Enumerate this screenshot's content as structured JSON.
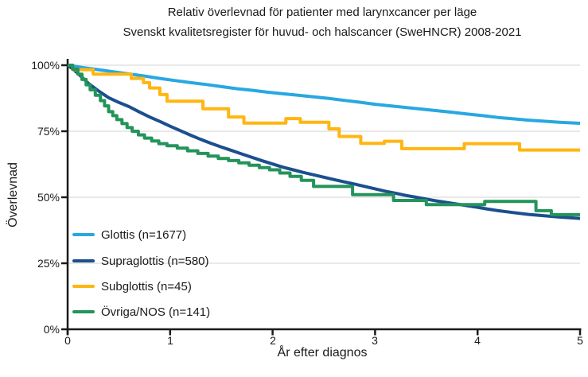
{
  "title": "Relativ överlevnad för patienter med larynxcancer per läge",
  "subtitle": "Svenskt kvalitetsregister för huvud- och halscancer (SweHNCR) 2008-2021",
  "chart_data": {
    "type": "line",
    "title": "Relativ överlevnad för patienter med larynxcancer per läge",
    "subtitle": "Svenskt kvalitetsregister för huvud- och halscancer (SweHNCR) 2008-2021",
    "xlabel": "År efter diagnos",
    "ylabel": "Överlevnad",
    "xlim": [
      0,
      5
    ],
    "ylim": [
      0,
      100
    ],
    "grid": "horizontal",
    "legend_position": "inside-bottom-left",
    "axis_color": "#1a1a1a",
    "grid_color": "#e2e2e2",
    "xticks": [
      {
        "value": 0,
        "label": "0"
      },
      {
        "value": 1,
        "label": "1"
      },
      {
        "value": 2,
        "label": "2"
      },
      {
        "value": 3,
        "label": "3"
      },
      {
        "value": 4,
        "label": "4"
      },
      {
        "value": 5,
        "label": "5"
      }
    ],
    "yticks": [
      {
        "value": 100,
        "label": "100%"
      },
      {
        "value": 75,
        "label": "75%"
      },
      {
        "value": 50,
        "label": "50%"
      },
      {
        "value": 25,
        "label": "25%"
      },
      {
        "value": 0,
        "label": "0%"
      }
    ],
    "series": [
      {
        "name": "Glottis",
        "legend": "Glottis (n=1677)",
        "color": "#29A8E0",
        "interpolation": "linear",
        "points": [
          [
            0,
            100
          ],
          [
            0.15,
            99.1
          ],
          [
            0.3,
            98.3
          ],
          [
            0.45,
            97.5
          ],
          [
            0.6,
            96.7
          ],
          [
            0.75,
            95.9
          ],
          [
            0.9,
            95.0
          ],
          [
            1.05,
            94.2
          ],
          [
            1.2,
            93.4
          ],
          [
            1.35,
            92.7
          ],
          [
            1.5,
            91.9
          ],
          [
            1.65,
            91.1
          ],
          [
            1.8,
            90.5
          ],
          [
            1.95,
            89.8
          ],
          [
            2.1,
            89.2
          ],
          [
            2.25,
            88.6
          ],
          [
            2.4,
            88.0
          ],
          [
            2.55,
            87.4
          ],
          [
            2.7,
            86.7
          ],
          [
            2.85,
            86.0
          ],
          [
            3.0,
            85.2
          ],
          [
            3.15,
            84.6
          ],
          [
            3.3,
            84.0
          ],
          [
            3.45,
            83.4
          ],
          [
            3.6,
            82.8
          ],
          [
            3.75,
            82.2
          ],
          [
            3.9,
            81.5
          ],
          [
            4.05,
            80.9
          ],
          [
            4.2,
            80.2
          ],
          [
            4.35,
            79.7
          ],
          [
            4.5,
            79.2
          ],
          [
            4.65,
            78.8
          ],
          [
            4.8,
            78.4
          ],
          [
            5.0,
            78.0
          ]
        ]
      },
      {
        "name": "Supraglottis",
        "legend": "Supraglottis (n=580)",
        "color": "#1C4F8E",
        "interpolation": "linear",
        "points": [
          [
            0,
            100
          ],
          [
            0.05,
            98.6
          ],
          [
            0.1,
            96.9
          ],
          [
            0.15,
            95.1
          ],
          [
            0.2,
            93.2
          ],
          [
            0.3,
            90.3
          ],
          [
            0.4,
            87.7
          ],
          [
            0.5,
            85.9
          ],
          [
            0.6,
            84.3
          ],
          [
            0.7,
            82.3
          ],
          [
            0.8,
            80.4
          ],
          [
            0.9,
            78.7
          ],
          [
            1.0,
            76.9
          ],
          [
            1.1,
            75.2
          ],
          [
            1.2,
            73.5
          ],
          [
            1.3,
            71.9
          ],
          [
            1.4,
            70.4
          ],
          [
            1.5,
            69.0
          ],
          [
            1.6,
            67.7
          ],
          [
            1.7,
            66.4
          ],
          [
            1.8,
            65.1
          ],
          [
            1.9,
            63.8
          ],
          [
            2.0,
            62.6
          ],
          [
            2.1,
            61.4
          ],
          [
            2.2,
            60.4
          ],
          [
            2.3,
            59.4
          ],
          [
            2.4,
            58.5
          ],
          [
            2.5,
            57.6
          ],
          [
            2.6,
            56.7
          ],
          [
            2.7,
            55.8
          ],
          [
            2.8,
            55.0
          ],
          [
            2.9,
            54.1
          ],
          [
            3.0,
            53.2
          ],
          [
            3.1,
            52.3
          ],
          [
            3.2,
            51.5
          ],
          [
            3.3,
            50.7
          ],
          [
            3.4,
            50.0
          ],
          [
            3.5,
            49.3
          ],
          [
            3.6,
            48.6
          ],
          [
            3.7,
            48.0
          ],
          [
            3.8,
            47.4
          ],
          [
            3.9,
            46.8
          ],
          [
            4.0,
            46.2
          ],
          [
            4.1,
            45.5
          ],
          [
            4.2,
            44.9
          ],
          [
            4.35,
            44.2
          ],
          [
            4.5,
            43.5
          ],
          [
            4.65,
            43.0
          ],
          [
            4.8,
            42.5
          ],
          [
            5.0,
            42.0
          ]
        ]
      },
      {
        "name": "Subglottis",
        "legend": "Subglottis (n=45)",
        "color": "#FFB612",
        "interpolation": "step",
        "points": [
          [
            0,
            100
          ],
          [
            0.05,
            98.3
          ],
          [
            0.25,
            96.6
          ],
          [
            0.62,
            95.0
          ],
          [
            0.74,
            93.4
          ],
          [
            0.8,
            91.4
          ],
          [
            0.9,
            88.9
          ],
          [
            0.97,
            86.4
          ],
          [
            1.32,
            83.5
          ],
          [
            1.57,
            80.4
          ],
          [
            1.72,
            78.1
          ],
          [
            2.13,
            79.8
          ],
          [
            2.27,
            78.4
          ],
          [
            2.55,
            75.9
          ],
          [
            2.65,
            73.0
          ],
          [
            2.86,
            70.4
          ],
          [
            3.09,
            71.2
          ],
          [
            3.26,
            68.4
          ],
          [
            3.87,
            70.3
          ],
          [
            4.41,
            67.9
          ],
          [
            5.0,
            67.9
          ]
        ]
      },
      {
        "name": "Övriga/NOS",
        "legend": "Övriga/NOS (n=141)",
        "color": "#23945A",
        "interpolation": "step",
        "points": [
          [
            0,
            100
          ],
          [
            0.05,
            98.5
          ],
          [
            0.1,
            96.6
          ],
          [
            0.14,
            94.6
          ],
          [
            0.18,
            92.6
          ],
          [
            0.22,
            90.7
          ],
          [
            0.27,
            88.6
          ],
          [
            0.32,
            86.6
          ],
          [
            0.36,
            84.6
          ],
          [
            0.4,
            82.4
          ],
          [
            0.44,
            80.9
          ],
          [
            0.48,
            79.4
          ],
          [
            0.53,
            77.9
          ],
          [
            0.58,
            76.4
          ],
          [
            0.63,
            75.0
          ],
          [
            0.69,
            73.6
          ],
          [
            0.75,
            72.4
          ],
          [
            0.82,
            71.3
          ],
          [
            0.89,
            70.3
          ],
          [
            0.97,
            69.5
          ],
          [
            1.07,
            68.6
          ],
          [
            1.17,
            67.6
          ],
          [
            1.27,
            66.6
          ],
          [
            1.37,
            65.6
          ],
          [
            1.47,
            64.7
          ],
          [
            1.57,
            63.9
          ],
          [
            1.67,
            63.0
          ],
          [
            1.77,
            62.1
          ],
          [
            1.87,
            61.2
          ],
          [
            1.97,
            60.4
          ],
          [
            2.07,
            59.2
          ],
          [
            2.17,
            57.9
          ],
          [
            2.28,
            56.4
          ],
          [
            2.4,
            54.1
          ],
          [
            2.78,
            51.0
          ],
          [
            3.18,
            48.8
          ],
          [
            3.5,
            47.2
          ],
          [
            4.07,
            48.4
          ],
          [
            4.57,
            44.9
          ],
          [
            4.72,
            43.4
          ],
          [
            5.0,
            43.4
          ]
        ]
      }
    ]
  }
}
